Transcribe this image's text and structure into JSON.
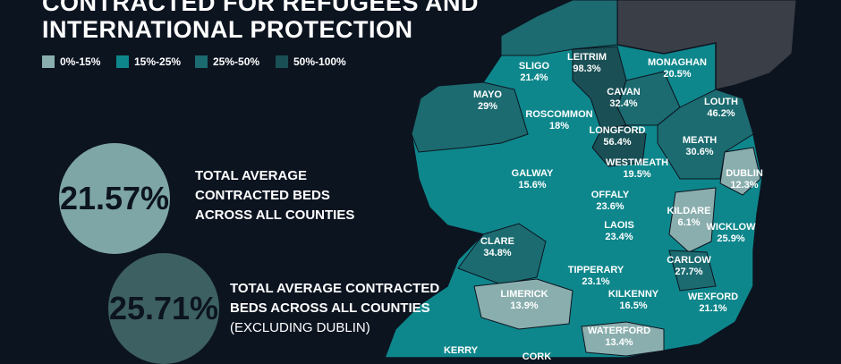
{
  "header": {
    "title_lines": [
      "CONTRACTED FOR REFUGEES AND",
      "INTERNATIONAL PROTECTION"
    ]
  },
  "legend": [
    "0%-15%",
    "15%-25%",
    "25%-50%",
    "50%-100%"
  ],
  "stats": [
    {
      "value": "21.57%",
      "lines": [
        "TOTAL AVERAGE",
        "CONTRACTED BEDS",
        "ACROSS ALL COUNTIES"
      ]
    },
    {
      "value": "25.71%",
      "lines": [
        "TOTAL AVERAGE CONTRACTED",
        "BEDS ACROSS ALL COUNTIES",
        "(EXCLUDING DUBLIN)"
      ]
    }
  ],
  "counties": [
    {
      "name": "SLIGO",
      "value": "21.4%"
    },
    {
      "name": "LEITRIM",
      "value": "98.3%"
    },
    {
      "name": "MONAGHAN",
      "value": "20.5%"
    },
    {
      "name": "MAYO",
      "value": "29%"
    },
    {
      "name": "CAVAN",
      "value": "32.4%"
    },
    {
      "name": "LOUTH",
      "value": "46.2%"
    },
    {
      "name": "ROSCOMMON",
      "value": "18%"
    },
    {
      "name": "LONGFORD",
      "value": "56.4%"
    },
    {
      "name": "MEATH",
      "value": "30.6%"
    },
    {
      "name": "WESTMEATH",
      "value": "19.5%"
    },
    {
      "name": "DUBLIN",
      "value": "12.3%"
    },
    {
      "name": "GALWAY",
      "value": "15.6%"
    },
    {
      "name": "OFFALY",
      "value": "23.6%"
    },
    {
      "name": "KILDARE",
      "value": "6.1%"
    },
    {
      "name": "LAOIS",
      "value": "23.4%"
    },
    {
      "name": "WICKLOW",
      "value": "25.9%"
    },
    {
      "name": "CLARE",
      "value": "34.8%"
    },
    {
      "name": "CARLOW",
      "value": "27.7%"
    },
    {
      "name": "TIPPERARY",
      "value": "23.1%"
    },
    {
      "name": "KILKENNY",
      "value": "16.5%"
    },
    {
      "name": "LIMERICK",
      "value": "13.9%"
    },
    {
      "name": "WEXFORD",
      "value": "21.1%"
    },
    {
      "name": "WATERFORD",
      "value": "13.4%"
    },
    {
      "name": "KERRY"
    },
    {
      "name": "CORK"
    }
  ]
}
